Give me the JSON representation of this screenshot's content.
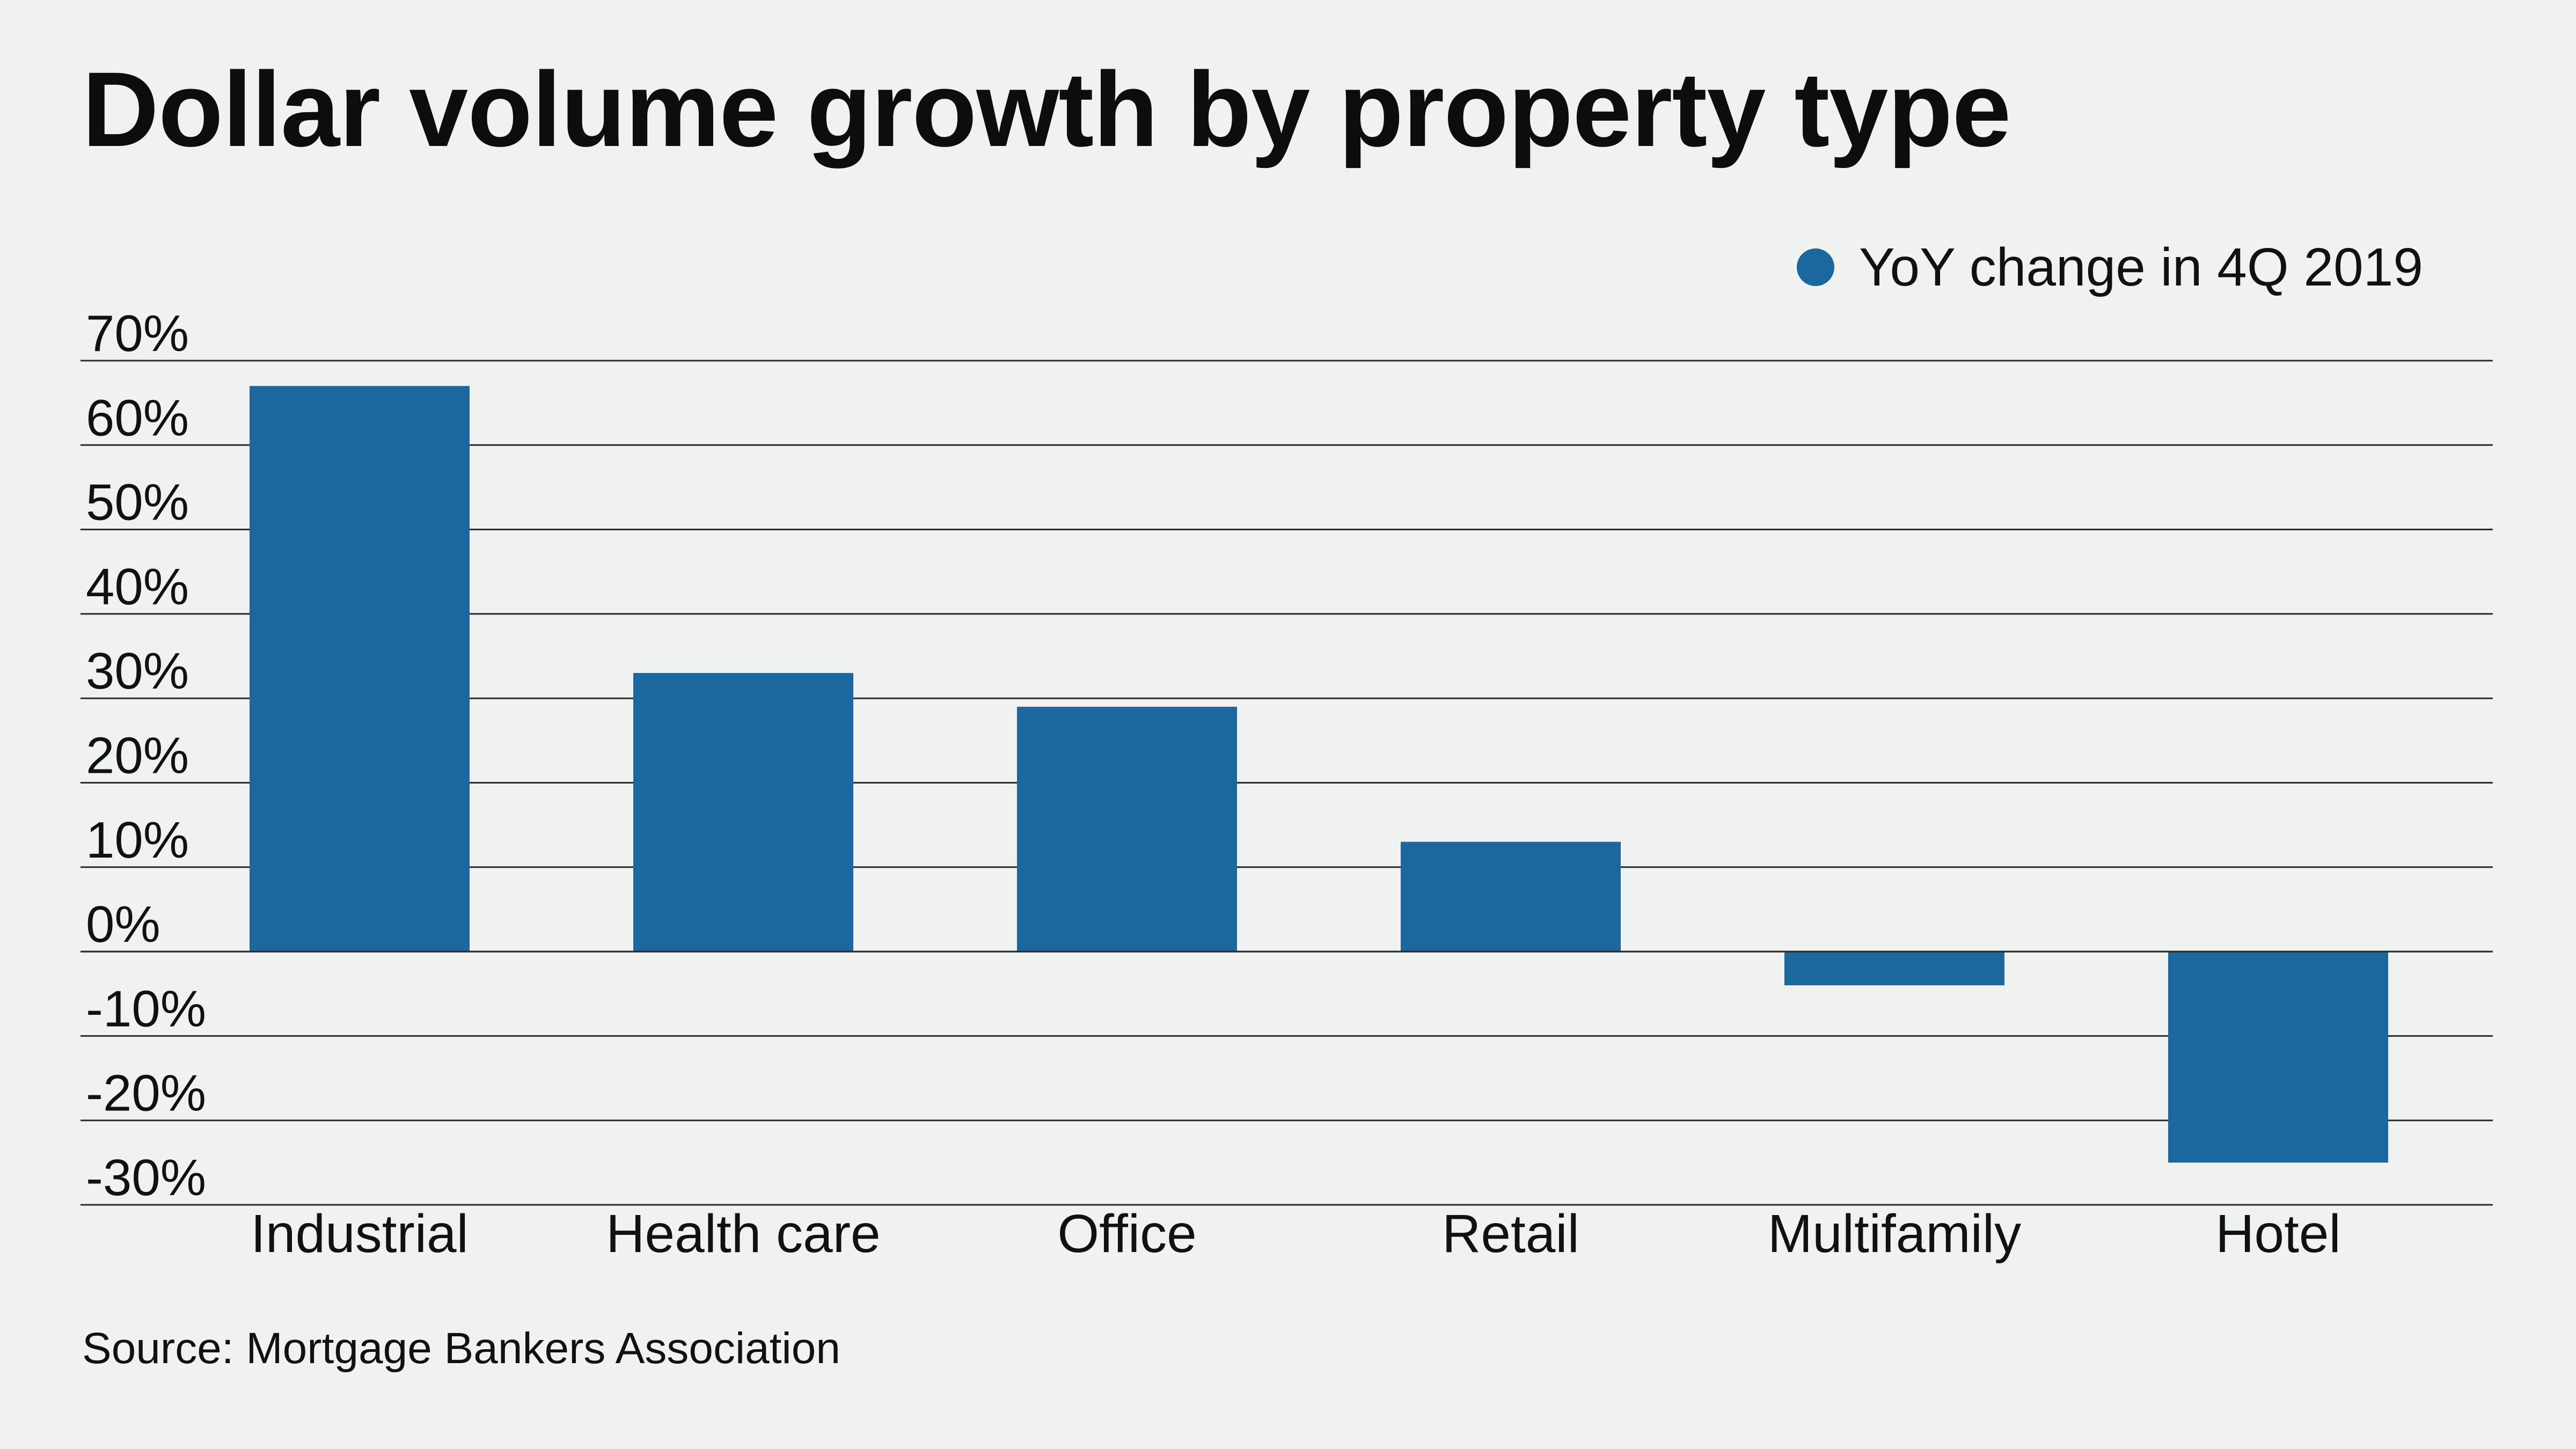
{
  "chart_data": {
    "type": "bar",
    "title": "Dollar volume growth by property type",
    "categories": [
      "Industrial",
      "Health care",
      "Office",
      "Retail",
      "Multifamily",
      "Hotel"
    ],
    "series": [
      {
        "name": "YoY change in 4Q 2019",
        "values": [
          67,
          33,
          29,
          13,
          -4,
          -25
        ],
        "color": "#1b679e"
      }
    ],
    "ylim": [
      -30,
      70
    ],
    "yticks": [
      70,
      60,
      50,
      40,
      30,
      20,
      10,
      0,
      -10,
      -20,
      -30
    ],
    "ytick_labels": [
      "70%",
      "60%",
      "50%",
      "40%",
      "30%",
      "20%",
      "10%",
      "0%",
      "-10%",
      "-20%",
      "-30%"
    ],
    "xlabel": "",
    "ylabel": "",
    "grid": "horizontal",
    "legend": "top-right",
    "source": "Source: Mortgage Bankers Association"
  }
}
